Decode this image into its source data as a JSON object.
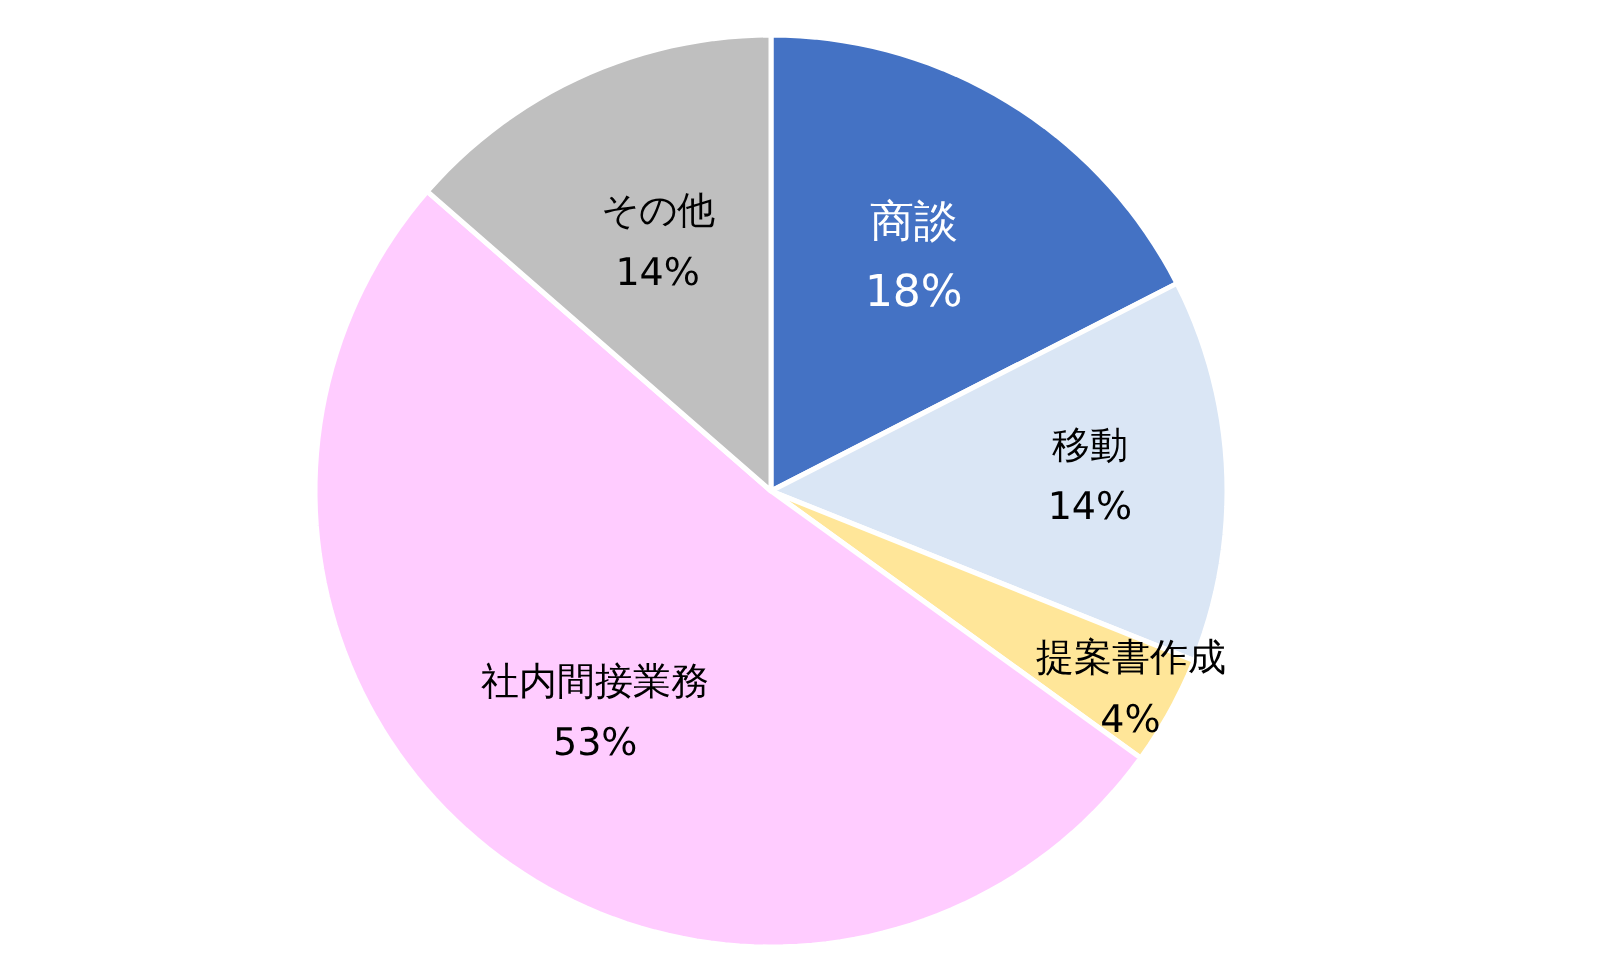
{
  "chart_data": {
    "type": "pie",
    "categories": [
      "商談",
      "移動",
      "提案書作成",
      "社内間接業務",
      "その他"
    ],
    "values": [
      18,
      14,
      4,
      53,
      14
    ],
    "colors": [
      "#4472c4",
      "#dae6f5",
      "#ffe699",
      "#ffccff",
      "#bfbfbf"
    ],
    "value_labels": [
      "18%",
      "14%",
      "4%",
      "53%",
      "14%"
    ],
    "legend": false
  }
}
